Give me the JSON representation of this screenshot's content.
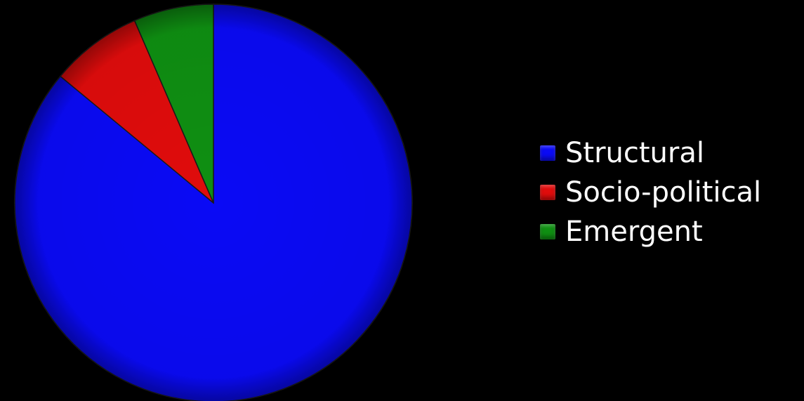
{
  "chart_data": {
    "type": "pie",
    "title": "",
    "series": [
      {
        "categories": [
          "Structural",
          "Socio-political",
          "Emergent"
        ],
        "values": [
          86,
          7.5,
          6.5
        ]
      }
    ],
    "colors": [
      "#0a0af5",
      "#e00c0c",
      "#0f8f12"
    ],
    "start_angle": "12 o'clock",
    "direction": "clockwise",
    "legend": {
      "placement": "right",
      "items": [
        {
          "label": "Structural",
          "color": "#0a0af5"
        },
        {
          "label": "Socio-political",
          "color": "#e00c0c"
        },
        {
          "label": "Emergent",
          "color": "#0f8f12"
        }
      ]
    }
  }
}
